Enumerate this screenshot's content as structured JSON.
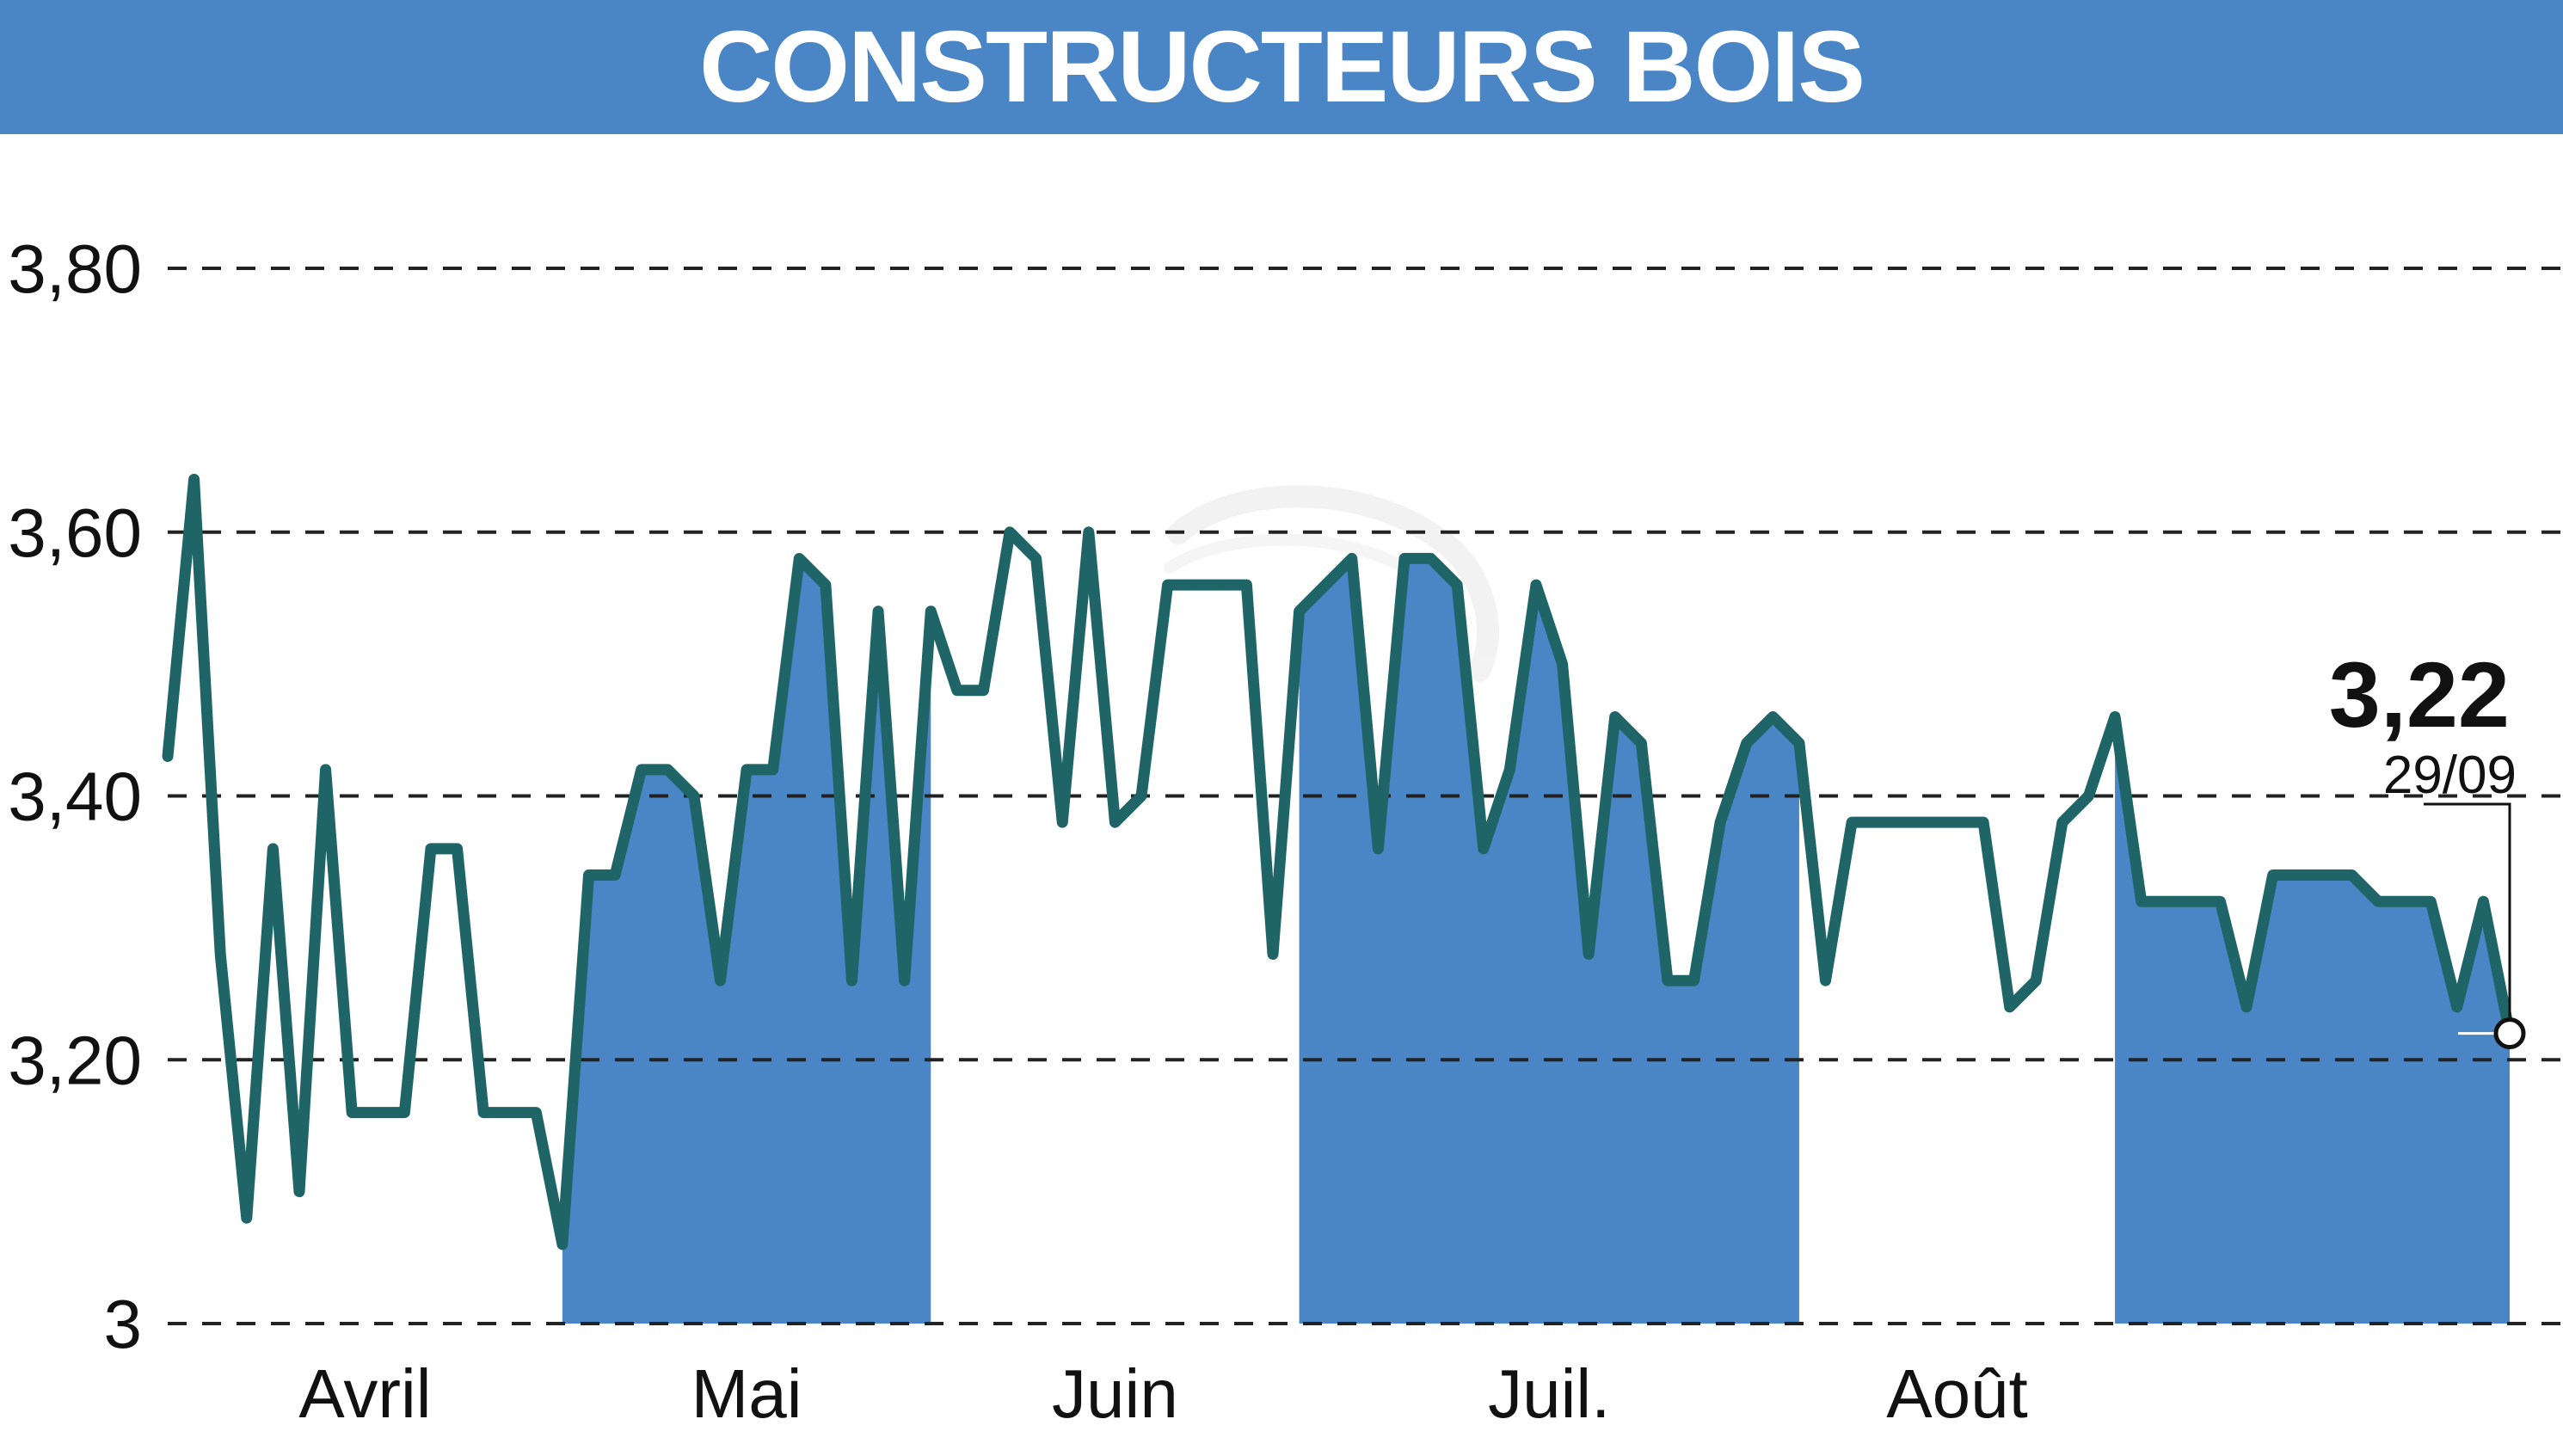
{
  "title": "CONSTRUCTEURS BOIS",
  "colors": {
    "title_bar": "#4a86c5",
    "title_text": "#ffffff",
    "line": "#1f6567",
    "area_fill": "#4a86c5",
    "grid": "#222222",
    "text": "#111111"
  },
  "chart_data": {
    "type": "line",
    "title": "CONSTRUCTEURS BOIS",
    "xlabel": "",
    "ylabel": "",
    "ylim": [
      3.0,
      3.9
    ],
    "yticks": [
      {
        "value": 3.0,
        "label": "3"
      },
      {
        "value": 3.2,
        "label": "3,20"
      },
      {
        "value": 3.4,
        "label": "3,40"
      },
      {
        "value": 3.6,
        "label": "3,60"
      },
      {
        "value": 3.8,
        "label": "3,80"
      }
    ],
    "grid": "horizontal dashed",
    "xlim": [
      0,
      89
    ],
    "months": [
      {
        "label": "Avril",
        "start": 0,
        "end": 15
      },
      {
        "label": "Mai",
        "start": 15,
        "end": 29
      },
      {
        "label": "Juin",
        "start": 29,
        "end": 43
      },
      {
        "label": "Juil.",
        "start": 43,
        "end": 62
      },
      {
        "label": "Août",
        "start": 62,
        "end": 74
      }
    ],
    "shaded_ranges": [
      [
        15,
        29
      ],
      [
        43,
        62
      ],
      [
        74,
        89
      ]
    ],
    "series": [
      {
        "values": [
          3.43,
          3.64,
          3.28,
          3.08,
          3.36,
          3.1,
          3.42,
          3.16,
          3.16,
          3.16,
          3.36,
          3.36,
          3.16,
          3.16,
          3.16,
          3.06,
          3.34,
          3.34,
          3.42,
          3.42,
          3.4,
          3.26,
          3.42,
          3.42,
          3.58,
          3.56,
          3.26,
          3.54,
          3.26,
          3.54,
          3.48,
          3.48,
          3.6,
          3.58,
          3.38,
          3.6,
          3.38,
          3.4,
          3.56,
          3.56,
          3.56,
          3.56,
          3.28,
          3.54,
          3.56,
          3.58,
          3.36,
          3.58,
          3.58,
          3.56,
          3.36,
          3.42,
          3.56,
          3.5,
          3.28,
          3.46,
          3.44,
          3.26,
          3.26,
          3.38,
          3.44,
          3.46,
          3.44,
          3.26,
          3.38,
          3.38,
          3.38,
          3.38,
          3.38,
          3.38,
          3.24,
          3.26,
          3.38,
          3.4,
          3.46,
          3.32,
          3.32,
          3.32,
          3.32,
          3.24,
          3.34,
          3.34,
          3.34,
          3.34,
          3.32,
          3.32,
          3.32,
          3.24,
          3.32,
          3.22
        ]
      }
    ],
    "last_value_label": "3,22",
    "last_date_label": "29/09"
  }
}
